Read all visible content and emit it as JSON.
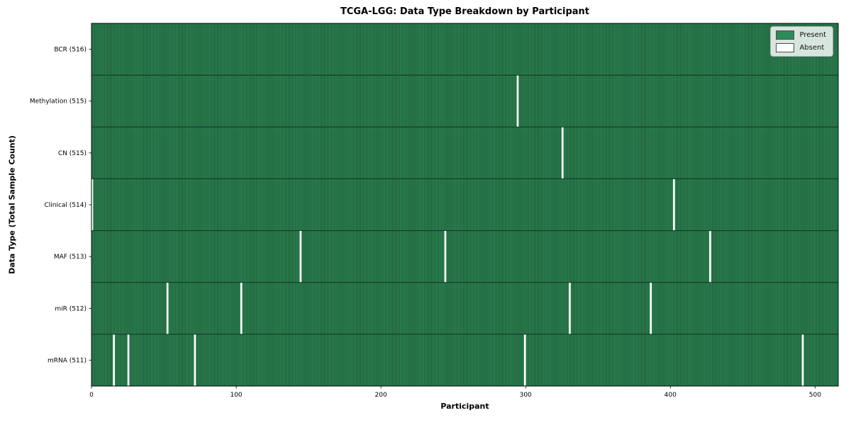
{
  "chart_data": {
    "type": "heatmap",
    "title": "TCGA-LGG: Data Type Breakdown by Participant",
    "xlabel": "Participant",
    "ylabel": "Data Type (Total Sample Count)",
    "x_ticks": [
      0,
      100,
      200,
      300,
      400,
      500
    ],
    "xlim": [
      0,
      516
    ],
    "n_participants": 516,
    "grid": false,
    "legend_position": "upper right",
    "legend": [
      {
        "label": "Present",
        "color": "#2e8b57"
      },
      {
        "label": "Absent",
        "color": "#ffffff"
      }
    ],
    "colors": {
      "present": "#2e8b57",
      "absent": "#ffffff",
      "cell_edge": "#1b4c30"
    },
    "rows": [
      {
        "label": "BCR (516)",
        "data_type": "BCR",
        "total_samples": 516,
        "absent_participants": []
      },
      {
        "label": "Methylation (515)",
        "data_type": "Methylation",
        "total_samples": 515,
        "absent_participants": [
          294
        ]
      },
      {
        "label": "CN (515)",
        "data_type": "CN",
        "total_samples": 515,
        "absent_participants": [
          325
        ]
      },
      {
        "label": "Clinical (514)",
        "data_type": "Clinical",
        "total_samples": 514,
        "absent_participants": [
          0,
          402
        ]
      },
      {
        "label": "MAF (513)",
        "data_type": "MAF",
        "total_samples": 513,
        "absent_participants": [
          144,
          244,
          427
        ]
      },
      {
        "label": "miR (512)",
        "data_type": "miR",
        "total_samples": 512,
        "absent_participants": [
          52,
          103,
          330,
          386
        ]
      },
      {
        "label": "mRNA (511)",
        "data_type": "mRNA",
        "total_samples": 511,
        "absent_participants": [
          15,
          25,
          71,
          299,
          491
        ]
      }
    ]
  }
}
